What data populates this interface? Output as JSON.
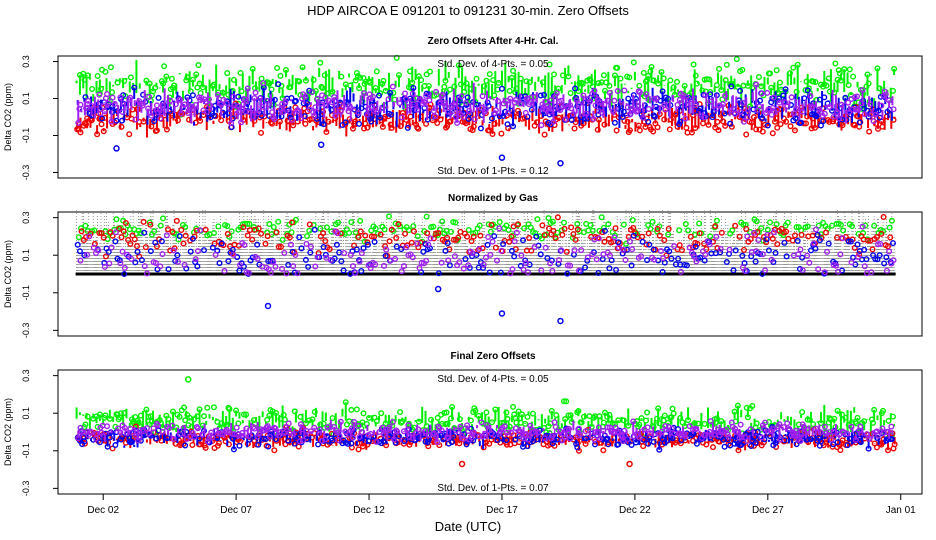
{
  "figure": {
    "title": "HDP   AIRCOA E   091201 to 091231   30-min. Zero Offsets",
    "xlabel": "Date (UTC)",
    "xticks": [
      {
        "day": 2,
        "label": "Dec 02"
      },
      {
        "day": 7,
        "label": "Dec 07"
      },
      {
        "day": 12,
        "label": "Dec 12"
      },
      {
        "day": 17,
        "label": "Dec 17"
      },
      {
        "day": 22,
        "label": "Dec 22"
      },
      {
        "day": 27,
        "label": "Dec 27"
      },
      {
        "day": 32,
        "label": "Jan 01"
      }
    ],
    "xlim": [
      0.3,
      32.8
    ]
  },
  "colors": {
    "green": "#00ee00",
    "red": "#ee0000",
    "blue": "#0000ee",
    "purple": "#a020f0",
    "black": "#000000",
    "gray": "#555555"
  },
  "chart_data": [
    {
      "type": "scatter",
      "title": "Zero Offsets After 4-Hr. Cal.",
      "ylabel": "Delta CO2 (ppm)",
      "ylim": [
        -0.33,
        0.33
      ],
      "yticks": [
        -0.3,
        -0.1,
        0.1,
        0.3
      ],
      "ytick_labels": [
        "-0.3",
        "-0.1",
        "0.1",
        "0.3"
      ],
      "time_range_days": [
        1.0,
        31.8
      ],
      "samples_per_day": 48,
      "annotation_top": "Std. Dev. of 4-Pts. = 0.05",
      "annotation_bottom": "Std. Dev. of 1-Pts. = 0.12",
      "series": [
        {
          "name": "green gas",
          "color_key": "green",
          "mean": 0.17,
          "spread": 0.09
        },
        {
          "name": "red gas",
          "color_key": "red",
          "mean": -0.01,
          "spread": 0.07
        },
        {
          "name": "blue gas",
          "color_key": "blue",
          "mean": 0.05,
          "spread": 0.08
        },
        {
          "name": "purple gas",
          "color_key": "purple",
          "mean": 0.06,
          "spread": 0.07
        }
      ],
      "outliers": [
        {
          "day": 17.0,
          "value": -0.22,
          "color_key": "blue"
        },
        {
          "day": 19.2,
          "value": -0.25,
          "color_key": "blue"
        },
        {
          "day": 2.5,
          "value": -0.17,
          "color_key": "blue"
        },
        {
          "day": 10.2,
          "value": -0.15,
          "color_key": "blue"
        }
      ]
    },
    {
      "type": "scatter",
      "title": "Normalized by Gas",
      "ylabel": "Delta CO2 (ppm)",
      "ylim": [
        -0.33,
        0.33
      ],
      "yticks": [
        -0.3,
        -0.1,
        0.1,
        0.3
      ],
      "ytick_labels": [
        "-0.3",
        "-0.1",
        "0.1",
        "0.3"
      ],
      "time_range_days": [
        1.0,
        31.8
      ],
      "samples_per_day": 48,
      "baseline": 0.0,
      "series": [
        {
          "name": "green gas",
          "color_key": "green",
          "mean": 0.24,
          "spread": 0.05
        },
        {
          "name": "red gas",
          "color_key": "red",
          "mean": 0.19,
          "spread": 0.07
        },
        {
          "name": "blue gas",
          "color_key": "blue",
          "mean": 0.1,
          "spread": 0.1
        },
        {
          "name": "purple gas",
          "color_key": "purple",
          "mean": 0.1,
          "spread": 0.1
        }
      ],
      "outliers": [
        {
          "day": 17.0,
          "value": -0.21,
          "color_key": "blue"
        },
        {
          "day": 19.2,
          "value": -0.25,
          "color_key": "blue"
        },
        {
          "day": 8.2,
          "value": -0.17,
          "color_key": "blue"
        },
        {
          "day": 14.6,
          "value": -0.08,
          "color_key": "blue"
        }
      ]
    },
    {
      "type": "scatter",
      "title": "Final Zero Offsets",
      "ylabel": "Delta CO2 (ppm)",
      "ylim": [
        -0.33,
        0.33
      ],
      "yticks": [
        -0.3,
        -0.1,
        0.1,
        0.3
      ],
      "ytick_labels": [
        "-0.3",
        "-0.1",
        "0.1",
        "0.3"
      ],
      "time_range_days": [
        1.0,
        31.8
      ],
      "samples_per_day": 48,
      "annotation_top": "Std. Dev. of 4-Pts. = 0.05",
      "annotation_bottom": "Std. Dev. of 1-Pts. = 0.07",
      "series": [
        {
          "name": "green gas",
          "color_key": "green",
          "mean": 0.06,
          "spread": 0.06
        },
        {
          "name": "red gas",
          "color_key": "red",
          "mean": -0.04,
          "spread": 0.04
        },
        {
          "name": "blue gas",
          "color_key": "blue",
          "mean": -0.03,
          "spread": 0.04
        },
        {
          "name": "purple gas",
          "color_key": "purple",
          "mean": 0.0,
          "spread": 0.04
        }
      ],
      "outliers": [
        {
          "day": 5.2,
          "value": 0.28,
          "color_key": "green"
        },
        {
          "day": 21.8,
          "value": -0.17,
          "color_key": "red"
        },
        {
          "day": 15.5,
          "value": -0.17,
          "color_key": "red"
        }
      ]
    }
  ]
}
